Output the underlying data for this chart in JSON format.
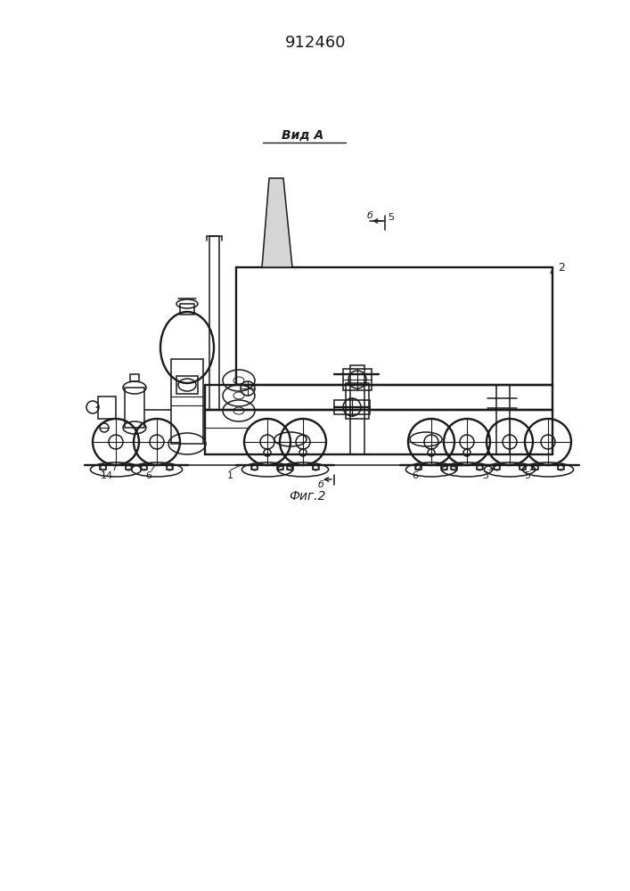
{
  "title": "912460",
  "view_label": "Вид А",
  "fig_label": "Фиг.2",
  "bg": "#ffffff",
  "lc": "#1a1a1a",
  "lc_light": "#555555"
}
